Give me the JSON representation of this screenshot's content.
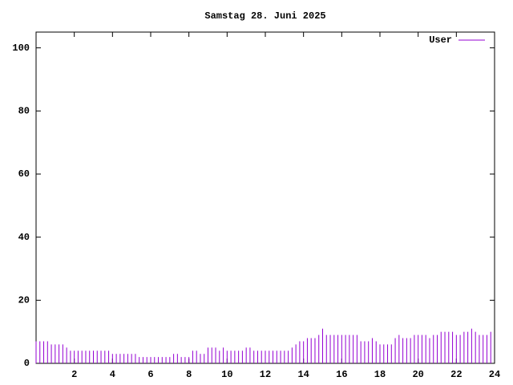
{
  "chart_data": {
    "type": "impulses",
    "title": "Samstag 28. Juni 2025",
    "x": [
      0,
      0.2,
      0.4,
      0.6,
      0.8,
      1,
      1.2,
      1.4,
      1.6,
      1.8,
      2,
      2.2,
      2.4,
      2.6,
      2.8,
      3,
      3.2,
      3.4,
      3.6,
      3.8,
      4,
      4.2,
      4.4,
      4.6,
      4.8,
      5,
      5.2,
      5.4,
      5.6,
      5.8,
      6,
      6.2,
      6.4,
      6.6,
      6.8,
      7,
      7.2,
      7.4,
      7.6,
      7.8,
      8,
      8.2,
      8.4,
      8.6,
      8.8,
      9,
      9.2,
      9.4,
      9.6,
      9.8,
      10,
      10.2,
      10.4,
      10.6,
      10.8,
      11,
      11.2,
      11.4,
      11.6,
      11.8,
      12,
      12.2,
      12.4,
      12.6,
      12.8,
      13,
      13.2,
      13.4,
      13.6,
      13.8,
      14,
      14.2,
      14.4,
      14.6,
      14.8,
      15,
      15.2,
      15.4,
      15.6,
      15.8,
      16,
      16.2,
      16.4,
      16.6,
      16.8,
      17,
      17.2,
      17.4,
      17.6,
      17.8,
      18,
      18.2,
      18.4,
      18.6,
      18.8,
      19,
      19.2,
      19.4,
      19.6,
      19.8,
      20,
      20.2,
      20.4,
      20.6,
      20.8,
      21,
      21.2,
      21.4,
      21.6,
      21.8,
      22,
      22.2,
      22.4,
      22.6,
      22.8,
      23,
      23.2,
      23.4,
      23.6,
      23.8
    ],
    "series": [
      {
        "name": "User",
        "color": "#9400d3",
        "values": [
          7,
          7,
          7,
          7,
          6,
          6,
          6,
          6,
          5,
          4,
          4,
          4,
          4,
          4,
          4,
          4,
          4,
          4,
          4,
          4,
          3,
          3,
          3,
          3,
          3,
          3,
          3,
          2,
          2,
          2,
          2,
          2,
          2,
          2,
          2,
          2,
          3,
          3,
          2,
          2,
          2,
          4,
          4,
          3,
          3,
          5,
          5,
          5,
          4,
          5,
          4,
          4,
          4,
          4,
          4,
          5,
          5,
          4,
          4,
          4,
          4,
          4,
          4,
          4,
          4,
          4,
          4,
          5,
          6,
          7,
          7,
          8,
          8,
          8,
          9,
          11,
          9,
          9,
          9,
          9,
          9,
          9,
          9,
          9,
          9,
          7,
          7,
          7,
          8,
          7,
          6,
          6,
          6,
          6,
          8,
          9,
          8,
          8,
          8,
          9,
          9,
          9,
          9,
          8,
          9,
          9,
          10,
          10,
          10,
          10,
          9,
          9,
          10,
          10,
          11,
          10,
          9,
          9,
          9,
          10
        ]
      }
    ],
    "xlim": [
      0,
      24
    ],
    "xticks": [
      2,
      4,
      6,
      8,
      10,
      12,
      14,
      16,
      18,
      20,
      22,
      24
    ],
    "ylim": [
      0,
      105
    ],
    "yticks": [
      0,
      20,
      40,
      60,
      80,
      100
    ],
    "legend": "top-right"
  }
}
